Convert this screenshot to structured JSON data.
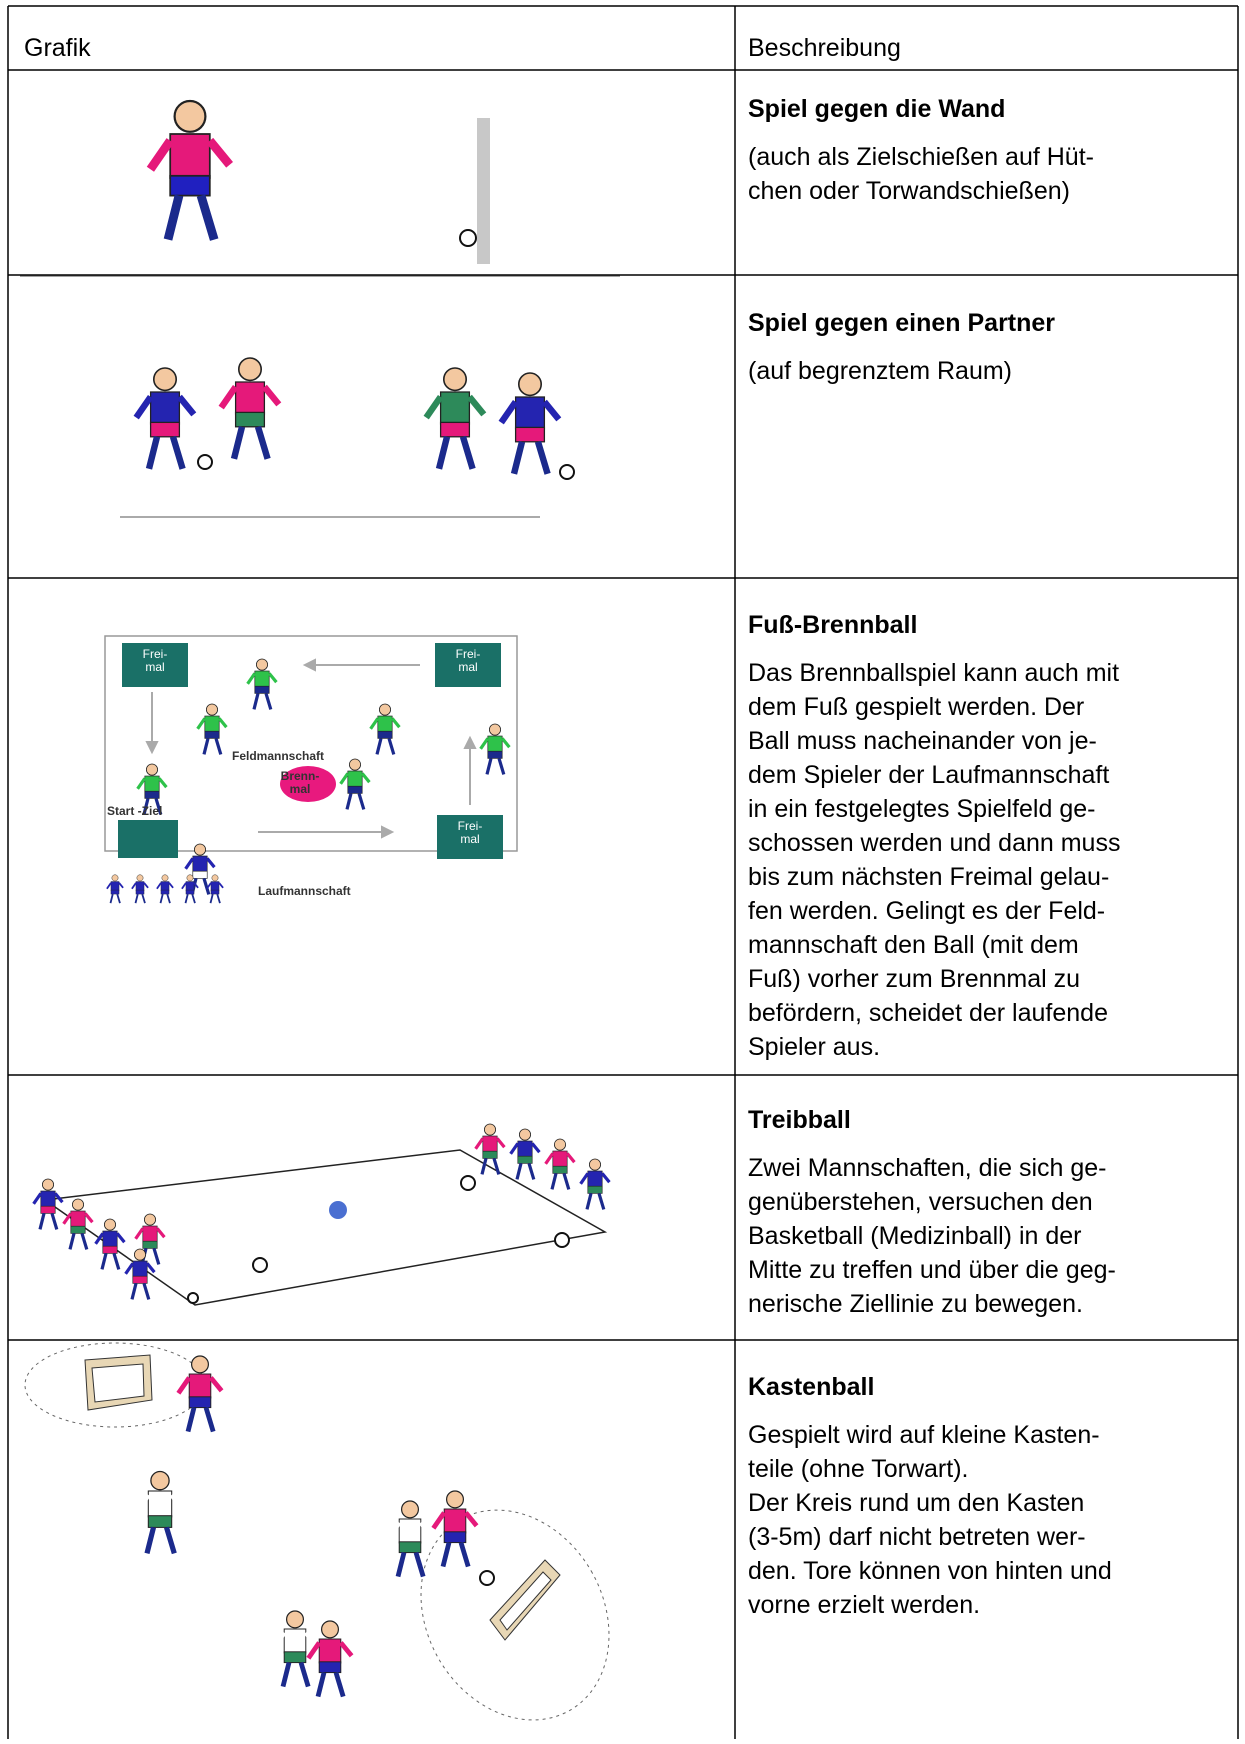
{
  "table": {
    "header": [
      "Grafik",
      "Beschreibung"
    ],
    "rows": [
      {
        "title": "Spiel gegen die Wand",
        "lines": [
          "(auch als Zielschießen auf Hüt-",
          "chen oder Torwandschießen)"
        ]
      },
      {
        "title": "Spiel gegen einen Partner",
        "lines": [
          "(auf begrenztem Raum)"
        ]
      },
      {
        "title": "Fuß-Brennball",
        "lines": [
          "Das Brennballspiel kann auch mit",
          "dem Fuß gespielt werden. Der",
          "Ball muss nacheinander von je-",
          "dem Spieler der Laufmannschaft",
          "in ein festgelegtes Spielfeld ge-",
          "schossen werden und dann muss",
          "bis zum nächsten Freimal gelau-",
          "fen werden. Gelingt es der Feld-",
          "mannschaft den Ball (mit dem",
          "Fuß) vorher zum Brennmal zu",
          "befördern, scheidet der laufende",
          "Spieler aus."
        ]
      },
      {
        "title": "Treibball",
        "lines": [
          "Zwei Mannschaften, die sich ge-",
          "genüberstehen, versuchen den",
          "Basketball (Medizinball) in der",
          "Mitte zu treffen und über die geg-",
          "nerische Ziellinie zu bewegen."
        ]
      },
      {
        "title": "Kastenball",
        "lines": [
          "Gespielt wird auf kleine Kasten-",
          "teile (ohne Torwart).",
          "Der Kreis rund um den Kasten",
          "(3-5m) darf nicht betreten wer-",
          "den. Tore können von hinten und",
          "vorne erzielt werden."
        ]
      }
    ]
  },
  "brennball_graphic": {
    "freimal_boxes": [
      [
        "Frei-",
        "mal"
      ],
      [
        "Frei-",
        "mal"
      ],
      [
        "Frei-",
        "mal"
      ]
    ],
    "brennmal": [
      "Brenn-",
      "mal"
    ],
    "field_team": "Feldmannschaft",
    "start": "Start -Ziel",
    "run_team": "Laufmannschaft"
  }
}
